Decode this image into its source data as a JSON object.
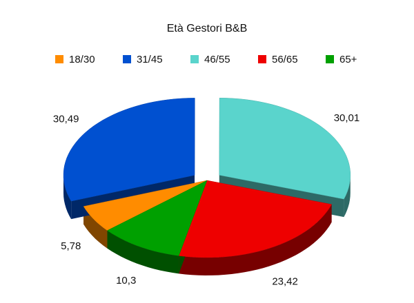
{
  "chart_data": {
    "type": "pie3d",
    "title": "Età Gestori B&B",
    "categories": [
      "18/30",
      "31/45",
      "46/55",
      "56/65",
      "65+"
    ],
    "values": [
      5.78,
      30.49,
      30.01,
      23.42,
      10.3
    ],
    "value_labels": [
      "5,78",
      "30,49",
      "30,01",
      "23,42",
      "10,3"
    ],
    "colors": [
      "#ff8c00",
      "#0050d0",
      "#5ad4cc",
      "#ee0000",
      "#00a000"
    ],
    "legend": "top"
  }
}
